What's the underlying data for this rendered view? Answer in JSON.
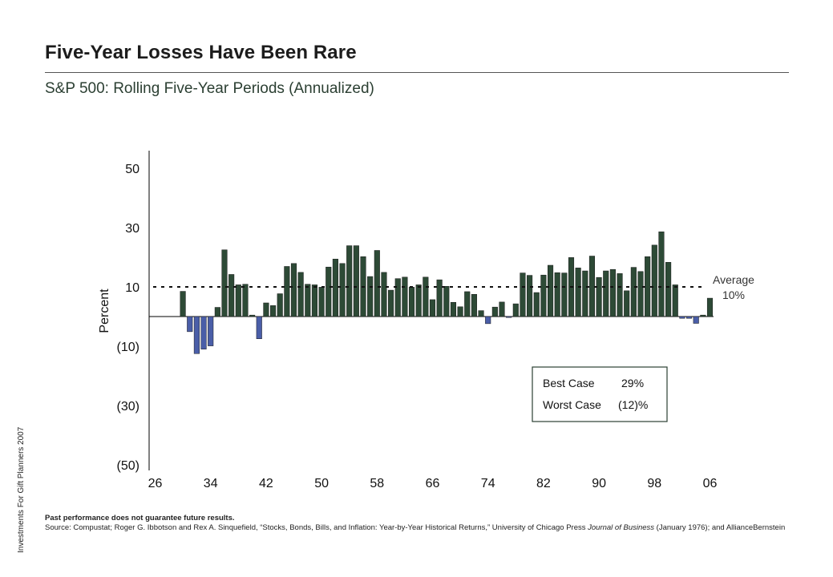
{
  "header": {
    "title": "Five-Year Losses Have Been Rare",
    "subtitle": "S&P 500: Rolling Five-Year Periods (Annualized)"
  },
  "sidebar_text": "Investments For Gift Planners 2007",
  "footnote": {
    "disclaimer": "Past performance does not guarantee future results.",
    "source_before_journal": "Source: Compustat; Roger G. Ibbotson and Rex A. Sinquefield, “Stocks, Bonds, Bills, and Inflation: Year-by-Year Historical Returns,” University of Chicago Press ",
    "journal": "Journal of Business",
    "source_after_journal": " (January 1976); and AllianceBernstein"
  },
  "chart_data": {
    "type": "bar",
    "ylabel": "Percent",
    "ylim": [
      -50,
      55
    ],
    "yticks": [
      {
        "value": 50,
        "label": "50"
      },
      {
        "value": 30,
        "label": "30"
      },
      {
        "value": 10,
        "label": "10"
      },
      {
        "value": -10,
        "label": "(10)"
      },
      {
        "value": -30,
        "label": "(30)"
      },
      {
        "value": -50,
        "label": "(50)"
      }
    ],
    "xticks": [
      {
        "year": 1926,
        "label": "26"
      },
      {
        "year": 1934,
        "label": "34"
      },
      {
        "year": 1942,
        "label": "42"
      },
      {
        "year": 1950,
        "label": "50"
      },
      {
        "year": 1958,
        "label": "58"
      },
      {
        "year": 1966,
        "label": "66"
      },
      {
        "year": 1974,
        "label": "74"
      },
      {
        "year": 1982,
        "label": "82"
      },
      {
        "year": 1990,
        "label": "90"
      },
      {
        "year": 1998,
        "label": "98"
      },
      {
        "year": 2006,
        "label": "06"
      }
    ],
    "x": [
      1930,
      1931,
      1932,
      1933,
      1934,
      1935,
      1936,
      1937,
      1938,
      1939,
      1940,
      1941,
      1942,
      1943,
      1944,
      1945,
      1946,
      1947,
      1948,
      1949,
      1950,
      1951,
      1952,
      1953,
      1954,
      1955,
      1956,
      1957,
      1958,
      1959,
      1960,
      1961,
      1962,
      1963,
      1964,
      1965,
      1966,
      1967,
      1968,
      1969,
      1970,
      1971,
      1972,
      1973,
      1974,
      1975,
      1976,
      1977,
      1978,
      1979,
      1980,
      1981,
      1982,
      1983,
      1984,
      1985,
      1986,
      1987,
      1988,
      1989,
      1990,
      1991,
      1992,
      1993,
      1994,
      1995,
      1996,
      1997,
      1998,
      1999,
      2000,
      2001,
      2002,
      2003,
      2004,
      2005,
      2006
    ],
    "values": [
      8.5,
      -5.1,
      -12.5,
      -11,
      -9.9,
      3.1,
      22.5,
      14.2,
      10.7,
      10.9,
      0.5,
      -7.5,
      4.6,
      3.7,
      7.7,
      16.9,
      17.9,
      14.9,
      10.9,
      10.7,
      9.9,
      16.7,
      19.4,
      17.9,
      23.9,
      23.9,
      20.2,
      13.5,
      22.3,
      14.9,
      8.9,
      12.8,
      13.3,
      9.9,
      10.7,
      13.3,
      5.7,
      12.4,
      10.2,
      4.8,
      3.3,
      8.4,
      7.5,
      2,
      -2.4,
      3.2,
      4.9,
      -0.2,
      4.3,
      14.7,
      13.9,
      8.1,
      14,
      17.3,
      14.8,
      14.7,
      19.9,
      16.4,
      15.4,
      20.4,
      13.2,
      15.4,
      15.9,
      14.5,
      8.7,
      16.6,
      15.2,
      20.2,
      24.1,
      28.6,
      18.3,
      10.7,
      -0.6,
      -0.6,
      -2.3,
      0.5,
      6.2
    ],
    "colors": {
      "positive": "#2d4a36",
      "negative": "#4a5ea8"
    },
    "average": {
      "value": 10,
      "label": "Average",
      "value_label": "10%"
    },
    "extremes": {
      "best_label": "Best Case",
      "best_value": "29%",
      "worst_label": "Worst Case",
      "worst_value": "(12)%"
    }
  }
}
